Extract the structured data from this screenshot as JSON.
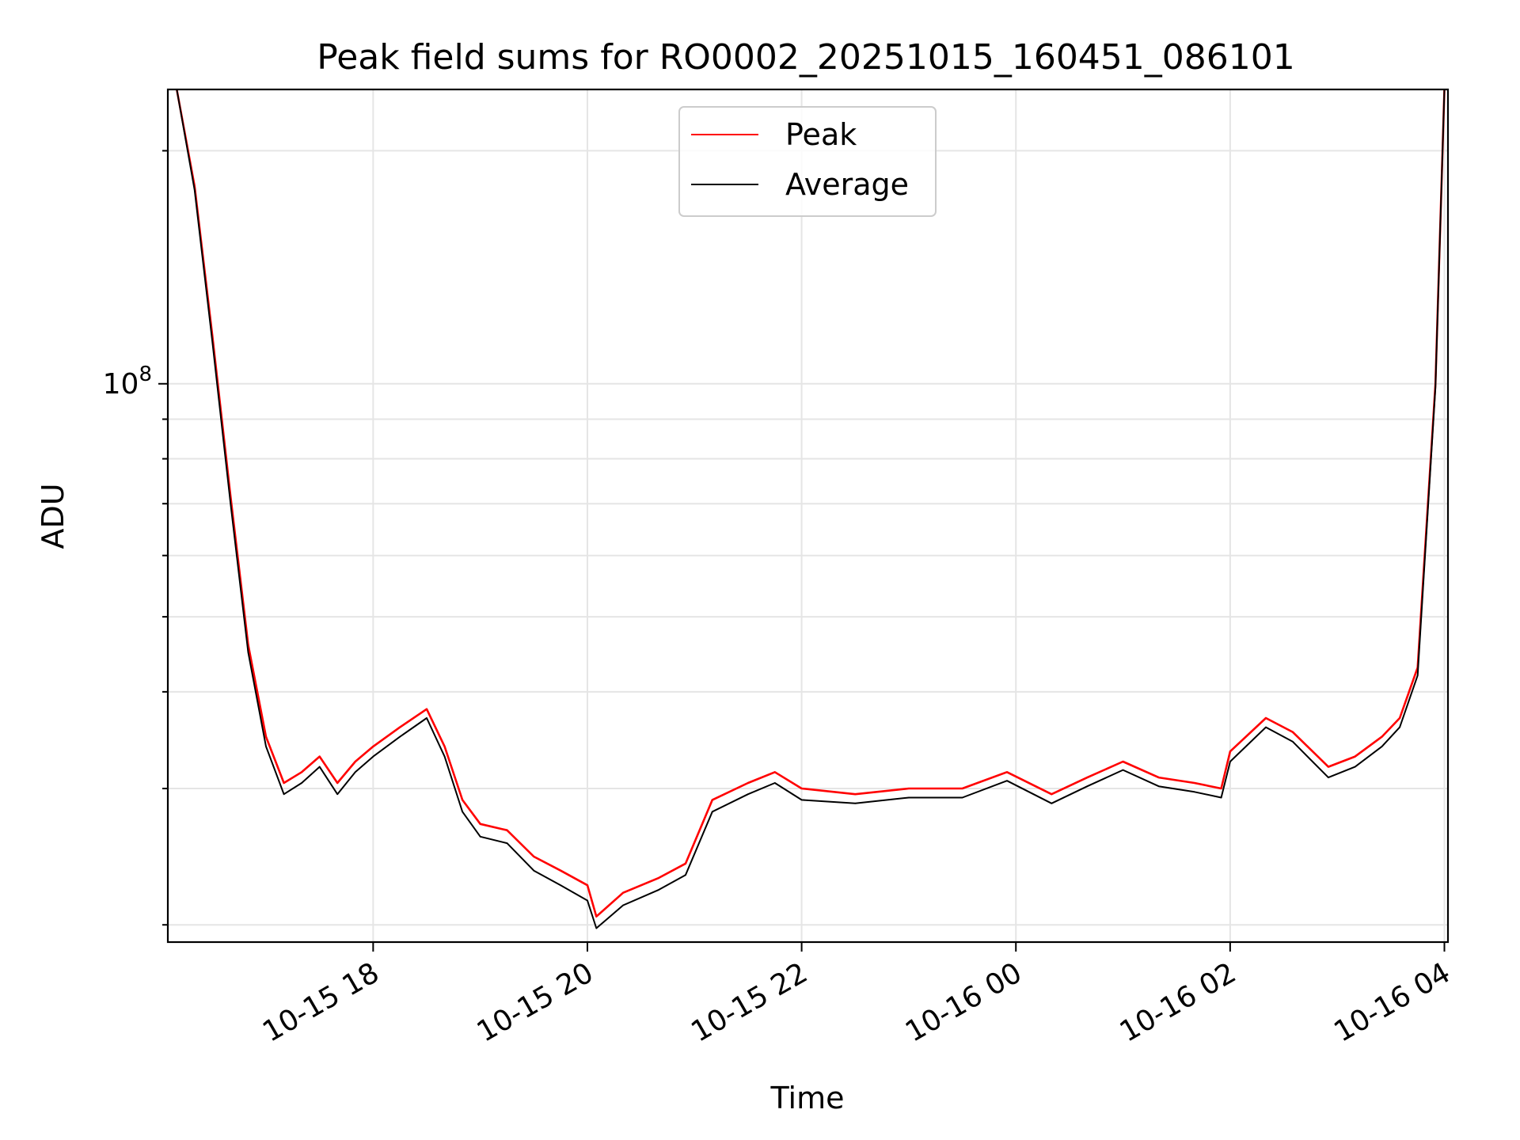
{
  "chart_data": {
    "type": "line",
    "title": "Peak field sums for RO0002_20251015_160451_086101",
    "xlabel": "Time",
    "ylabel": "ADU",
    "yscale": "log",
    "ylim": [
      19000000,
      240000000
    ],
    "xlim": [
      "2025-10-15 16:05",
      "2025-10-16 04:02"
    ],
    "x_tick_labels": [
      "10-15 18",
      "10-15 20",
      "10-15 22",
      "10-16 00",
      "10-16 02",
      "10-16 04"
    ],
    "x_ticks": [
      "2025-10-15 18:00",
      "2025-10-15 20:00",
      "2025-10-15 22:00",
      "2025-10-16 00:00",
      "2025-10-16 02:00",
      "2025-10-16 04:00"
    ],
    "y_tick_labels": [
      {
        "base": "10",
        "exponent": "8",
        "value": 100000000
      }
    ],
    "grid": true,
    "legend": {
      "position": "upper center"
    },
    "series": [
      {
        "name": "Peak",
        "color": "#ff0000",
        "x": [
          "2025-10-15 16:10",
          "2025-10-15 16:20",
          "2025-10-15 16:30",
          "2025-10-15 16:40",
          "2025-10-15 16:50",
          "2025-10-15 17:00",
          "2025-10-15 17:10",
          "2025-10-15 17:20",
          "2025-10-15 17:30",
          "2025-10-15 17:40",
          "2025-10-15 17:50",
          "2025-10-15 18:00",
          "2025-10-15 18:15",
          "2025-10-15 18:30",
          "2025-10-15 18:40",
          "2025-10-15 18:50",
          "2025-10-15 19:00",
          "2025-10-15 19:15",
          "2025-10-15 19:30",
          "2025-10-15 19:45",
          "2025-10-15 20:00",
          "2025-10-15 20:05",
          "2025-10-15 20:20",
          "2025-10-15 20:40",
          "2025-10-15 20:55",
          "2025-10-15 21:10",
          "2025-10-15 21:30",
          "2025-10-15 21:45",
          "2025-10-15 22:00",
          "2025-10-15 22:30",
          "2025-10-15 23:00",
          "2025-10-15 23:30",
          "2025-10-15 23:55",
          "2025-10-16 00:20",
          "2025-10-16 00:40",
          "2025-10-16 01:00",
          "2025-10-16 01:20",
          "2025-10-16 01:40",
          "2025-10-16 01:55",
          "2025-10-16 02:00",
          "2025-10-16 02:20",
          "2025-10-16 02:35",
          "2025-10-16 02:55",
          "2025-10-16 03:10",
          "2025-10-16 03:25",
          "2025-10-16 03:35",
          "2025-10-16 03:45",
          "2025-10-16 03:55",
          "2025-10-16 04:00"
        ],
        "y": [
          240000000,
          180000000,
          115000000,
          72000000,
          46000000,
          35000000,
          30500000,
          31500000,
          33000000,
          30500000,
          32500000,
          34000000,
          36000000,
          38000000,
          34000000,
          29000000,
          27000000,
          26500000,
          24500000,
          23500000,
          22500000,
          20500000,
          22000000,
          23000000,
          24000000,
          29000000,
          30500000,
          31500000,
          30000000,
          29500000,
          30000000,
          30000000,
          31500000,
          29500000,
          31000000,
          32500000,
          31000000,
          30500000,
          30000000,
          33500000,
          37000000,
          35500000,
          32000000,
          33000000,
          35000000,
          37000000,
          43000000,
          100000000,
          240000000
        ]
      },
      {
        "name": "Average",
        "color": "#000000",
        "x": [
          "2025-10-15 16:10",
          "2025-10-15 16:20",
          "2025-10-15 16:30",
          "2025-10-15 16:40",
          "2025-10-15 16:50",
          "2025-10-15 17:00",
          "2025-10-15 17:10",
          "2025-10-15 17:20",
          "2025-10-15 17:30",
          "2025-10-15 17:40",
          "2025-10-15 17:50",
          "2025-10-15 18:00",
          "2025-10-15 18:15",
          "2025-10-15 18:30",
          "2025-10-15 18:40",
          "2025-10-15 18:50",
          "2025-10-15 19:00",
          "2025-10-15 19:15",
          "2025-10-15 19:30",
          "2025-10-15 19:45",
          "2025-10-15 20:00",
          "2025-10-15 20:05",
          "2025-10-15 20:20",
          "2025-10-15 20:40",
          "2025-10-15 20:55",
          "2025-10-15 21:10",
          "2025-10-15 21:30",
          "2025-10-15 21:45",
          "2025-10-15 22:00",
          "2025-10-15 22:30",
          "2025-10-15 23:00",
          "2025-10-15 23:30",
          "2025-10-15 23:55",
          "2025-10-16 00:20",
          "2025-10-16 00:40",
          "2025-10-16 01:00",
          "2025-10-16 01:20",
          "2025-10-16 01:40",
          "2025-10-16 01:55",
          "2025-10-16 02:00",
          "2025-10-16 02:20",
          "2025-10-16 02:35",
          "2025-10-16 02:55",
          "2025-10-16 03:10",
          "2025-10-16 03:25",
          "2025-10-16 03:35",
          "2025-10-16 03:45",
          "2025-10-16 03:55",
          "2025-10-16 04:00"
        ],
        "y": [
          240000000,
          178000000,
          113000000,
          70500000,
          45000000,
          34000000,
          29500000,
          30500000,
          32000000,
          29500000,
          31500000,
          33000000,
          35000000,
          37000000,
          33000000,
          28000000,
          26000000,
          25500000,
          23500000,
          22500000,
          21500000,
          19800000,
          21200000,
          22200000,
          23200000,
          28000000,
          29500000,
          30500000,
          29000000,
          28700000,
          29200000,
          29200000,
          30700000,
          28700000,
          30200000,
          31700000,
          30200000,
          29700000,
          29200000,
          32500000,
          36000000,
          34500000,
          31000000,
          32000000,
          34000000,
          36000000,
          42000000,
          99000000,
          240000000
        ]
      }
    ]
  }
}
